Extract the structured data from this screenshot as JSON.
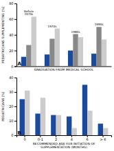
{
  "chart_data": [
    {
      "type": "bar",
      "xlabel": "GRADUATION FROM MEDICAL SCHOOL",
      "ylabel": "PEDIATRICIANS SUPPLEMENTING (%)",
      "categories": [
        "Before\n1970s",
        "1970s",
        "1980s",
        "1990s"
      ],
      "series": [
        {
          "values": [
            12,
            15,
            20,
            16
          ],
          "color": "#1a4a9e"
        },
        {
          "values": [
            27,
            35,
            41,
            50
          ],
          "color": "#888888"
        },
        {
          "values": [
            63,
            48,
            37,
            34
          ],
          "color": "#cccccc"
        }
      ],
      "ylim": [
        0,
        80
      ],
      "yticks": [
        0,
        20,
        40,
        60,
        80
      ],
      "tick_labels": "y",
      "annotations": [
        "A"
      ]
    },
    {
      "type": "bar",
      "xlabel": "RECOMMENDED AGE FOR INITIATION OF\nSUPPLEMENTATION (MONTHS)",
      "ylabel": "PEDIATRICIANS (%)",
      "categories": [
        "0",
        "0-1",
        "2",
        "4",
        "6",
        "> 6"
      ],
      "series": [
        {
          "values": [
            25,
            15,
            14,
            13,
            35,
            8
          ],
          "color": "#1a4a9e"
        },
        {
          "values": [
            31,
            26,
            14,
            5,
            17,
            5
          ],
          "color": "#cccccc"
        }
      ],
      "ylim": [
        0,
        40
      ],
      "yticks": [
        0,
        10,
        20,
        30,
        40
      ],
      "annotations": [
        "B"
      ]
    }
  ]
}
